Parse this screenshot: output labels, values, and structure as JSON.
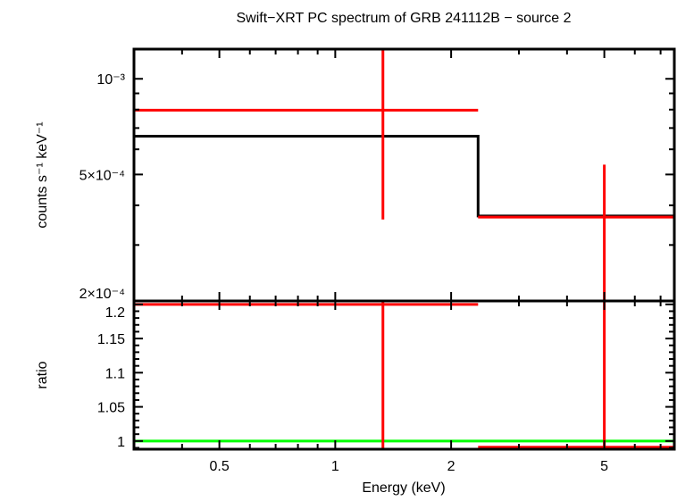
{
  "chart_data": [
    {
      "type": "line",
      "panel": "spectrum",
      "title": "Swift−XRT PC spectrum of GRB 241112B − source 2",
      "xlabel": "Energy (keV)",
      "ylabel": "counts s⁻¹ keV⁻¹",
      "xscale": "log",
      "yscale": "log",
      "xlim": [
        0.3,
        7.6
      ],
      "ylim": [
        0.0002,
        0.00124
      ],
      "yticks": [
        {
          "v": 0.001,
          "label": "10⁻³"
        },
        {
          "v": 0.0005,
          "label": "5×10⁻⁴"
        },
        {
          "v": 0.0002,
          "label": "2×10⁻⁴"
        }
      ],
      "data": [
        {
          "x": 1.33,
          "xlo": 0.3,
          "xhi": 2.35,
          "y": 0.000797,
          "ylo": 0.000361,
          "yhi": 0.00124
        },
        {
          "x": 5.0,
          "xlo": 2.35,
          "xhi": 7.6,
          "y": 0.000367,
          "ylo": 0.0002,
          "yhi": 0.000537
        }
      ],
      "model": [
        {
          "xlo": 0.3,
          "xhi": 2.35,
          "y": 0.00066
        },
        {
          "xlo": 2.35,
          "xhi": 7.6,
          "y": 0.00037
        }
      ],
      "colors": {
        "data": "#ff0000",
        "model": "#000000",
        "ratio_ref": "#00ff00"
      }
    },
    {
      "type": "line",
      "panel": "ratio",
      "xlabel": "Energy (keV)",
      "ylabel": "ratio",
      "xscale": "log",
      "xlim": [
        0.3,
        7.6
      ],
      "ylim": [
        0.988,
        1.205
      ],
      "xticks": [
        {
          "v": 0.5,
          "label": "0.5"
        },
        {
          "v": 1,
          "label": "1"
        },
        {
          "v": 2,
          "label": "2"
        },
        {
          "v": 5,
          "label": "5"
        }
      ],
      "yticks": [
        {
          "v": 1.2,
          "label": "1.2"
        },
        {
          "v": 1.15,
          "label": "1.15"
        },
        {
          "v": 1.1,
          "label": "1.1"
        },
        {
          "v": 1.05,
          "label": "1.05"
        },
        {
          "v": 1,
          "label": "1"
        }
      ],
      "data": [
        {
          "x": 1.33,
          "xlo": 0.3,
          "xhi": 2.35,
          "y": 1.2
        },
        {
          "x": 5.0,
          "xlo": 2.35,
          "xhi": 7.6,
          "y": 0.991
        }
      ],
      "reference": 1
    }
  ]
}
